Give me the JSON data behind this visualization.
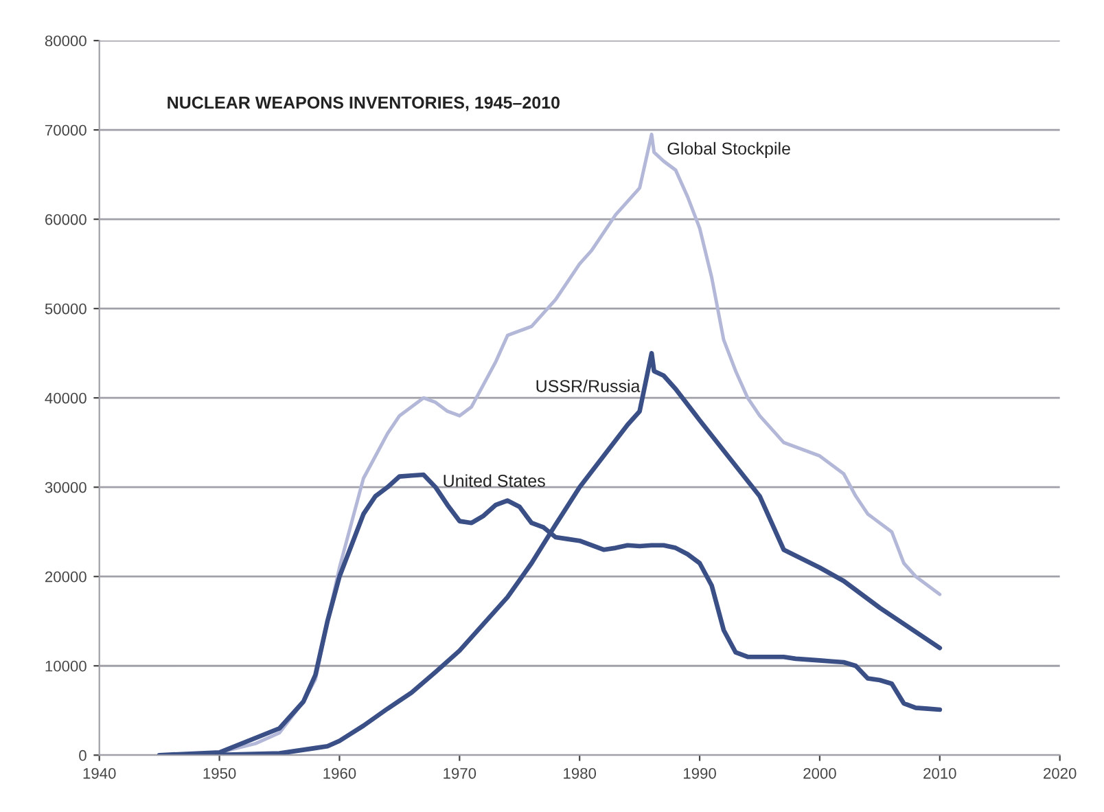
{
  "chart_data": {
    "type": "line",
    "title": "NUCLEAR WEAPONS INVENTORIES, 1945–2010",
    "xlim": [
      1940,
      2020
    ],
    "xticks": [
      1940,
      1950,
      1960,
      1970,
      1980,
      1990,
      2000,
      2010,
      2020
    ],
    "ylim": [
      0,
      80000
    ],
    "yticks": [
      0,
      10000,
      20000,
      30000,
      40000,
      50000,
      60000,
      70000,
      80000
    ],
    "grid": "y",
    "legend": false,
    "marker": "none",
    "line_style": "solid",
    "series": [
      {
        "name": "Global Stockpile",
        "color": "#b4b8d8",
        "x": [
          1945,
          1950,
          1953,
          1955,
          1957,
          1958,
          1959,
          1960,
          1961,
          1962,
          1963,
          1964,
          1965,
          1966,
          1967,
          1968,
          1969,
          1970,
          1971,
          1972,
          1973,
          1974,
          1975,
          1976,
          1977,
          1978,
          1979,
          1980,
          1981,
          1982,
          1983,
          1984,
          1985,
          1986,
          1986.2,
          1987,
          1988,
          1989,
          1990,
          1991,
          1992,
          1993,
          1994,
          1995,
          1996,
          1997,
          1998,
          1999,
          2000,
          2001,
          2002,
          2003,
          2004,
          2005,
          2006,
          2007,
          2008,
          2009,
          2010
        ],
        "values": [
          0,
          300,
          1300,
          2500,
          6000,
          8500,
          15000,
          21000,
          26000,
          31000,
          33500,
          36000,
          38000,
          39000,
          40000,
          39500,
          38500,
          38000,
          39000,
          41500,
          44000,
          47000,
          47500,
          48000,
          49500,
          51000,
          53000,
          55000,
          56500,
          58500,
          60500,
          62000,
          63500,
          69500,
          67500,
          66500,
          65500,
          62500,
          59000,
          53500,
          46500,
          43000,
          40000,
          38000,
          36500,
          35000,
          34500,
          34000,
          33500,
          32500,
          31500,
          29000,
          27000,
          26000,
          25000,
          21500,
          20000,
          19000,
          18000
        ]
      },
      {
        "name": "USSR/Russia",
        "color": "#3b4f87",
        "x": [
          1949,
          1955,
          1958,
          1959,
          1960,
          1962,
          1964,
          1966,
          1968,
          1970,
          1972,
          1974,
          1976,
          1978,
          1980,
          1982,
          1984,
          1985,
          1986,
          1986.2,
          1987,
          1988,
          1990,
          1995,
          1997,
          2000,
          2002,
          2005,
          2010
        ],
        "values": [
          0,
          200,
          800,
          1000,
          1600,
          3300,
          5200,
          7000,
          9300,
          11700,
          14700,
          17700,
          21500,
          25800,
          30000,
          33500,
          37000,
          38500,
          45000,
          43000,
          42500,
          41000,
          37500,
          29000,
          23000,
          21000,
          19500,
          16500,
          12000
        ]
      },
      {
        "name": "United States",
        "color": "#3b4f87",
        "x": [
          1945,
          1950,
          1955,
          1957,
          1958,
          1959,
          1960,
          1961,
          1962,
          1963,
          1964,
          1965,
          1966,
          1967,
          1968,
          1969,
          1970,
          1971,
          1972,
          1973,
          1974,
          1975,
          1976,
          1977,
          1978,
          1979,
          1980,
          1981,
          1982,
          1983,
          1984,
          1985,
          1986,
          1987,
          1988,
          1989,
          1990,
          1991,
          1992,
          1993,
          1994,
          1995,
          1996,
          1997,
          1998,
          1999,
          2000,
          2001,
          2002,
          2003,
          2004,
          2005,
          2006,
          2007,
          2008,
          2009,
          2010
        ],
        "values": [
          0,
          300,
          3000,
          6000,
          9000,
          15000,
          20000,
          23500,
          27000,
          29000,
          30000,
          31200,
          31300,
          31400,
          30000,
          28000,
          26200,
          26000,
          26800,
          28000,
          28500,
          27800,
          26000,
          25500,
          24400,
          24200,
          24000,
          23500,
          23000,
          23200,
          23500,
          23400,
          23500,
          23500,
          23200,
          22500,
          21500,
          19000,
          14000,
          11500,
          11000,
          11000,
          11000,
          11000,
          10800,
          10700,
          10600,
          10500,
          10400,
          10000,
          8600,
          8400,
          8000,
          5800,
          5300,
          5200,
          5100
        ]
      }
    ]
  }
}
